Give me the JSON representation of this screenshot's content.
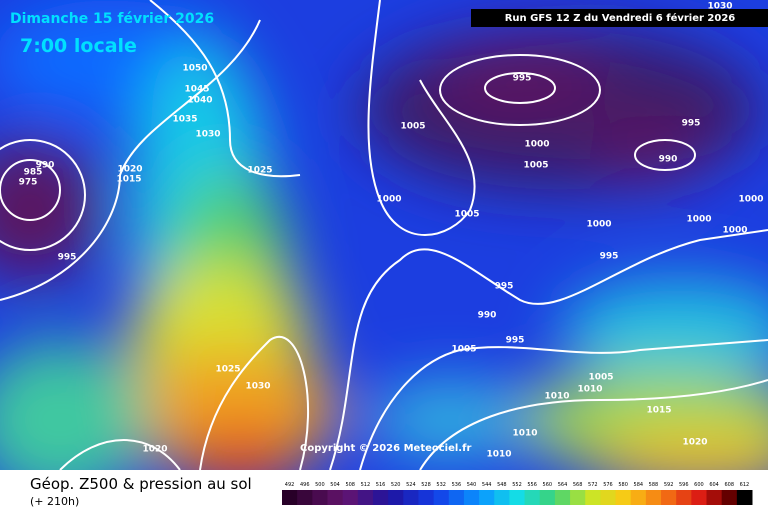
{
  "header": {
    "date": "Dimanche 15 février 2026",
    "time": "7:00 locale",
    "run": "Run GFS 12 Z du Vendredi 6 février 2026"
  },
  "copyright": "Copyright © 2026 Meteociel.fr",
  "isobar_labels": [
    "1050",
    "1045",
    "1040",
    "1035",
    "1030",
    "1025",
    "1030",
    "995",
    "1005",
    "1000",
    "1005",
    "990",
    "995",
    "1000",
    "1005",
    "1000",
    "1000",
    "1000",
    "1000",
    "995",
    "995",
    "990",
    "995",
    "1005",
    "1005",
    "1010",
    "1010",
    "1015",
    "1010",
    "1010",
    "1020",
    "1025",
    "1030",
    "1020",
    "995",
    "990",
    "985",
    "975",
    "1020",
    "1015"
  ],
  "footer": {
    "title": "Géop. Z500 & pression au sol",
    "lead": "(+ 210h)"
  },
  "legend": {
    "labels": [
      "492",
      "496",
      "500",
      "504",
      "508",
      "512",
      "516",
      "520",
      "524",
      "528",
      "532",
      "536",
      "540",
      "544",
      "548",
      "552",
      "556",
      "560",
      "564",
      "568",
      "572",
      "576",
      "580",
      "584",
      "588",
      "592",
      "596",
      "600",
      "604",
      "608",
      "612"
    ]
  }
}
